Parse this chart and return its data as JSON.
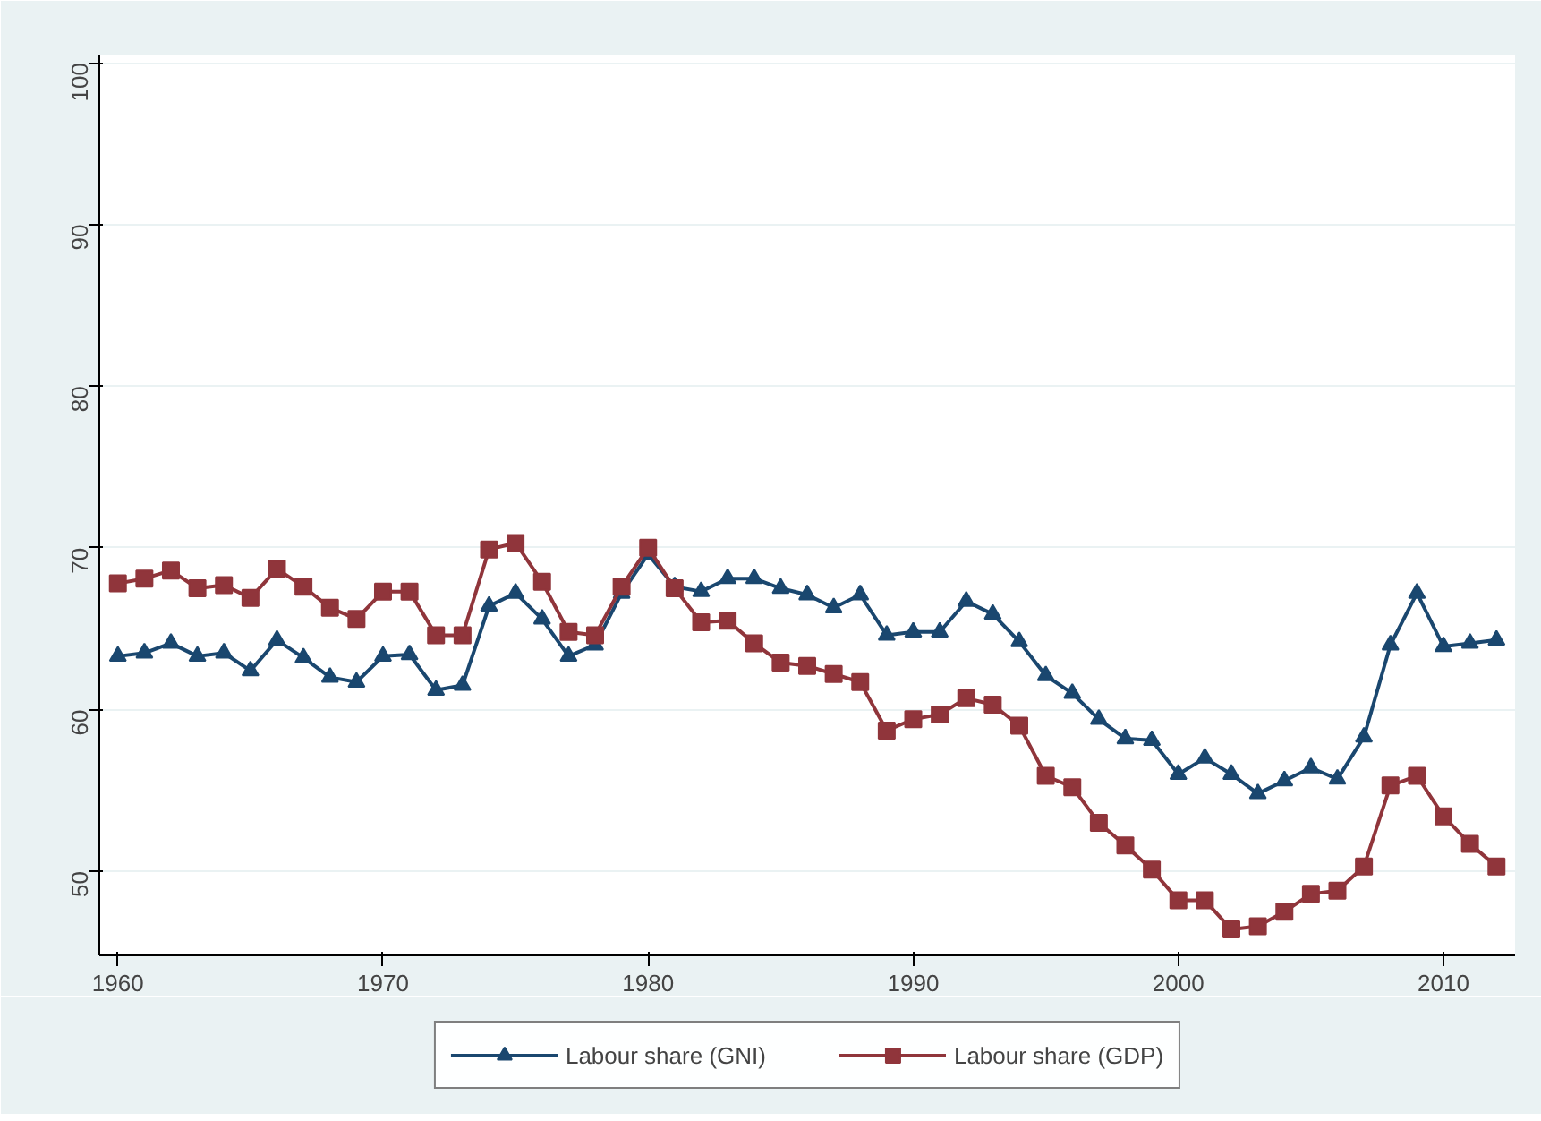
{
  "chart_data": {
    "type": "line",
    "x": [
      1960,
      1961,
      1962,
      1963,
      1964,
      1965,
      1966,
      1967,
      1968,
      1969,
      1970,
      1971,
      1972,
      1973,
      1974,
      1975,
      1976,
      1977,
      1978,
      1979,
      1980,
      1981,
      1982,
      1983,
      1984,
      1985,
      1986,
      1987,
      1988,
      1989,
      1990,
      1991,
      1992,
      1993,
      1994,
      1995,
      1996,
      1997,
      1998,
      1999,
      2000,
      2001,
      2002,
      2003,
      2004,
      2005,
      2006,
      2007,
      2008,
      2009,
      2010,
      2011,
      2012
    ],
    "series": [
      {
        "name": "Labour share (GNI)",
        "color": "#1a476f",
        "marker": "triangle",
        "values": [
          63.3,
          63.5,
          64.1,
          63.3,
          63.5,
          62.4,
          64.3,
          63.2,
          62.0,
          61.7,
          63.3,
          63.4,
          61.2,
          61.5,
          66.4,
          67.2,
          65.6,
          63.3,
          64.0,
          67.2,
          69.6,
          67.6,
          67.3,
          68.1,
          68.1,
          67.5,
          67.1,
          66.3,
          67.1,
          64.6,
          64.8,
          64.8,
          66.7,
          65.9,
          64.2,
          62.1,
          61.0,
          59.4,
          58.2,
          58.1,
          56.0,
          57.0,
          56.0,
          54.8,
          55.6,
          56.4,
          55.7,
          58.3,
          64.0,
          67.2,
          63.9,
          64.1,
          64.3
        ]
      },
      {
        "name": "Labour share (GDP)",
        "color": "#90353b",
        "marker": "square",
        "values": [
          67.8,
          68.1,
          68.6,
          67.5,
          67.7,
          66.9,
          68.7,
          67.6,
          66.3,
          65.6,
          67.3,
          67.3,
          64.6,
          64.6,
          69.9,
          70.3,
          67.9,
          64.8,
          64.6,
          67.6,
          70.0,
          67.5,
          65.4,
          65.5,
          64.1,
          62.9,
          62.7,
          62.2,
          61.7,
          58.7,
          59.4,
          59.7,
          60.7,
          60.3,
          59.0,
          55.9,
          55.2,
          53.0,
          51.6,
          50.1,
          48.2,
          48.2,
          46.4,
          46.6,
          47.5,
          48.6,
          48.8,
          50.3,
          55.3,
          55.9,
          53.4,
          51.7,
          50.3
        ]
      }
    ],
    "xlim": [
      1959.3,
      2012.7
    ],
    "ylim": [
      44.8,
      100.5
    ],
    "xticks": [
      1960,
      1970,
      1980,
      1990,
      2000,
      2010
    ],
    "yticks": [
      50,
      60,
      70,
      80,
      90,
      100
    ],
    "grid": "y",
    "legend": "bottom",
    "line_style": "solid"
  }
}
